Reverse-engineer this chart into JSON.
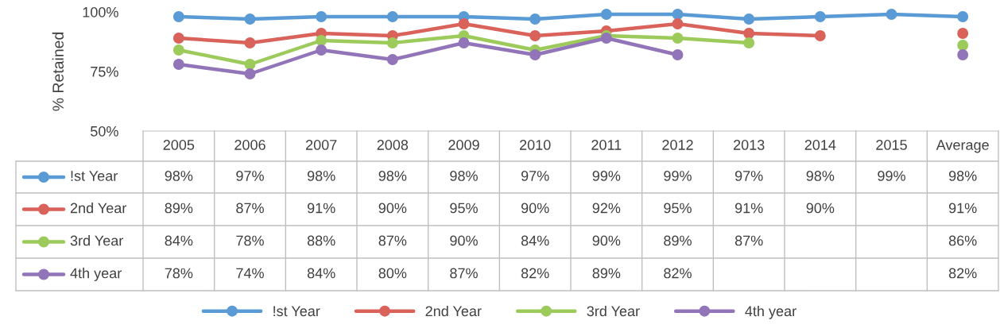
{
  "chart_data": {
    "type": "line",
    "ylabel": "% Retained",
    "categories": [
      "2005",
      "2006",
      "2007",
      "2008",
      "2009",
      "2010",
      "2011",
      "2012",
      "2013",
      "2014",
      "2015",
      "Average"
    ],
    "ylim": [
      50,
      100
    ],
    "yticks": [
      {
        "value": 50,
        "label": "50%"
      },
      {
        "value": 75,
        "label": "75%"
      },
      {
        "value": 100,
        "label": "100%"
      }
    ],
    "marker": "circle",
    "line_style": "solid",
    "grid": false,
    "legend": "bottom",
    "series": [
      {
        "name": "!st Year",
        "color": "#5b9bd5",
        "values": [
          98,
          97,
          98,
          98,
          98,
          97,
          99,
          99,
          97,
          98,
          99,
          98
        ],
        "value_labels": [
          "98%",
          "97%",
          "98%",
          "98%",
          "98%",
          "97%",
          "99%",
          "99%",
          "97%",
          "98%",
          "99%",
          "98%"
        ]
      },
      {
        "name": "2nd Year",
        "color": "#d9625a",
        "values": [
          89,
          87,
          91,
          90,
          95,
          90,
          92,
          95,
          91,
          90,
          null,
          91
        ],
        "value_labels": [
          "89%",
          "87%",
          "91%",
          "90%",
          "95%",
          "90%",
          "92%",
          "95%",
          "91%",
          "90%",
          null,
          "91%"
        ]
      },
      {
        "name": "3rd Year",
        "color": "#9ccb5b",
        "values": [
          84,
          78,
          88,
          87,
          90,
          84,
          90,
          89,
          87,
          null,
          null,
          86
        ],
        "value_labels": [
          "84%",
          "78%",
          "88%",
          "87%",
          "90%",
          "84%",
          "90%",
          "89%",
          "87%",
          null,
          null,
          "86%"
        ]
      },
      {
        "name": "4th year",
        "color": "#9274b8",
        "values": [
          78,
          74,
          84,
          80,
          87,
          82,
          89,
          82,
          null,
          null,
          null,
          82
        ],
        "value_labels": [
          "78%",
          "74%",
          "84%",
          "80%",
          "87%",
          "82%",
          "89%",
          "82%",
          null,
          null,
          null,
          "82%"
        ]
      }
    ]
  }
}
